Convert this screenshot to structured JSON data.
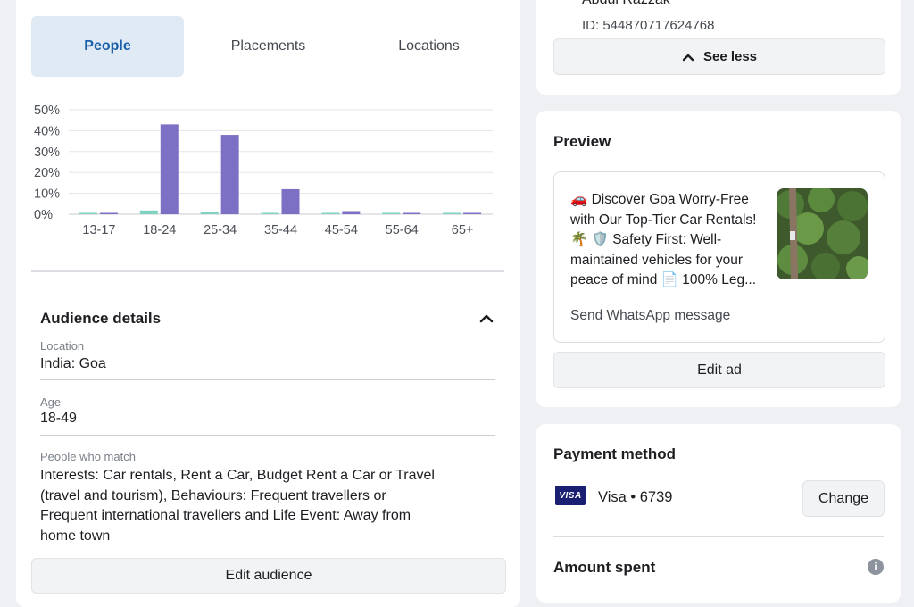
{
  "tabs": [
    {
      "label": "People",
      "active": true
    },
    {
      "label": "Placements",
      "active": false
    },
    {
      "label": "Locations",
      "active": false
    }
  ],
  "chart_data": {
    "type": "bar",
    "categories": [
      "13-17",
      "18-24",
      "25-34",
      "35-44",
      "45-54",
      "55-64",
      "65+"
    ],
    "series": [
      {
        "values": [
          0.2,
          1.8,
          1.2,
          0.3,
          0.1,
          0.1,
          0.1
        ],
        "color": "#7fd1c0"
      },
      {
        "values": [
          0.3,
          43,
          38,
          12,
          1.5,
          0.3,
          0.3
        ],
        "color": "#7b70c4"
      }
    ],
    "ylim": [
      0,
      50
    ],
    "yticks": [
      "0%",
      "10%",
      "20%",
      "30%",
      "40%",
      "50%"
    ],
    "grid": true
  },
  "audience": {
    "title": "Audience details",
    "location_label": "Location",
    "location_value": "India: Goa",
    "age_label": "Age",
    "age_value": "18-49",
    "match_label": "People who match",
    "match_lines": [
      "Interests: Car rentals, Rent a Car, Budget Rent a Car or Travel",
      "(travel and tourism), Behaviours: Frequent travellers or",
      "Frequent international travellers and Life Event: Away from",
      "home town"
    ],
    "edit_label": "Edit audience"
  },
  "account": {
    "name": "Abdul Razzak",
    "id_text": "ID: 544870717624768",
    "see_less_label": "See less"
  },
  "preview": {
    "title": "Preview",
    "ad_lines": [
      "🚗 Discover Goa Worry-Free",
      "with Our Top-Tier Car Rentals!",
      "🌴 🛡️ Safety First: Well-",
      "maintained vehicles for your",
      "peace of mind 📄 100% Leg..."
    ],
    "cta": "Send WhatsApp message",
    "edit_label": "Edit ad"
  },
  "payment": {
    "title": "Payment method",
    "card_brand": "VISA",
    "card_text": "Visa • 6739",
    "change_label": "Change"
  },
  "amount": {
    "title": "Amount spent"
  }
}
